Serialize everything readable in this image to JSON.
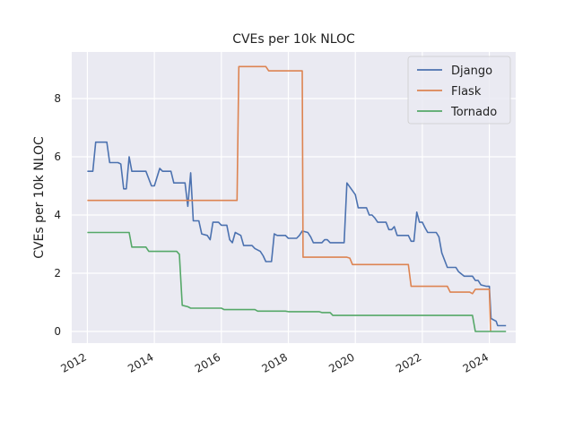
{
  "chart_data": {
    "type": "line",
    "title": "CVEs per 10k NLOC",
    "xlabel": "",
    "ylabel": "CVEs per 10k NLOC",
    "xlim": [
      "2011-07-15",
      "2024-10-15"
    ],
    "ylim": [
      -0.4,
      9.6
    ],
    "xticks": [
      "2012",
      "2014",
      "2016",
      "2018",
      "2020",
      "2022",
      "2024"
    ],
    "yticks": [
      0,
      2,
      4,
      6,
      8
    ],
    "grid": true,
    "legend_position": "top-right",
    "background": "#eaeaf2",
    "series": [
      {
        "name": "Django",
        "color": "#4c72b0",
        "points": [
          [
            "2012-01-01",
            5.5
          ],
          [
            "2012-03-01",
            5.5
          ],
          [
            "2012-04-01",
            6.5
          ],
          [
            "2012-08-01",
            6.5
          ],
          [
            "2012-09-01",
            5.8
          ],
          [
            "2012-12-01",
            5.8
          ],
          [
            "2013-01-01",
            5.75
          ],
          [
            "2013-02-01",
            4.9
          ],
          [
            "2013-03-01",
            4.9
          ],
          [
            "2013-04-01",
            6.0
          ],
          [
            "2013-05-01",
            5.5
          ],
          [
            "2013-10-01",
            5.5
          ],
          [
            "2013-12-01",
            5.0
          ],
          [
            "2014-01-01",
            5.0
          ],
          [
            "2014-03-01",
            5.6
          ],
          [
            "2014-04-01",
            5.5
          ],
          [
            "2014-07-01",
            5.5
          ],
          [
            "2014-08-01",
            5.1
          ],
          [
            "2014-12-01",
            5.1
          ],
          [
            "2015-01-01",
            4.3
          ],
          [
            "2015-02-01",
            5.45
          ],
          [
            "2015-03-01",
            3.8
          ],
          [
            "2015-05-01",
            3.8
          ],
          [
            "2015-06-01",
            3.35
          ],
          [
            "2015-08-01",
            3.3
          ],
          [
            "2015-09-01",
            3.15
          ],
          [
            "2015-10-01",
            3.75
          ],
          [
            "2015-12-01",
            3.75
          ],
          [
            "2016-01-01",
            3.65
          ],
          [
            "2016-03-01",
            3.65
          ],
          [
            "2016-04-01",
            3.15
          ],
          [
            "2016-05-01",
            3.05
          ],
          [
            "2016-06-01",
            3.4
          ],
          [
            "2016-08-01",
            3.3
          ],
          [
            "2016-09-01",
            2.95
          ],
          [
            "2016-12-01",
            2.95
          ],
          [
            "2017-01-01",
            2.85
          ],
          [
            "2017-03-01",
            2.75
          ],
          [
            "2017-04-01",
            2.6
          ],
          [
            "2017-05-01",
            2.4
          ],
          [
            "2017-07-01",
            2.4
          ],
          [
            "2017-08-01",
            3.35
          ],
          [
            "2017-09-01",
            3.3
          ],
          [
            "2017-12-01",
            3.3
          ],
          [
            "2018-01-01",
            3.2
          ],
          [
            "2018-04-01",
            3.2
          ],
          [
            "2018-05-01",
            3.3
          ],
          [
            "2018-06-01",
            3.45
          ],
          [
            "2018-08-01",
            3.4
          ],
          [
            "2018-09-01",
            3.25
          ],
          [
            "2018-10-01",
            3.05
          ],
          [
            "2019-01-01",
            3.05
          ],
          [
            "2019-02-01",
            3.15
          ],
          [
            "2019-03-01",
            3.15
          ],
          [
            "2019-04-01",
            3.05
          ],
          [
            "2019-09-01",
            3.05
          ],
          [
            "2019-10-01",
            5.1
          ],
          [
            "2020-01-01",
            4.7
          ],
          [
            "2020-02-01",
            4.25
          ],
          [
            "2020-05-01",
            4.25
          ],
          [
            "2020-06-01",
            4.0
          ],
          [
            "2020-07-01",
            4.0
          ],
          [
            "2020-08-01",
            3.9
          ],
          [
            "2020-09-01",
            3.75
          ],
          [
            "2020-12-01",
            3.75
          ],
          [
            "2021-01-01",
            3.5
          ],
          [
            "2021-02-01",
            3.5
          ],
          [
            "2021-03-01",
            3.6
          ],
          [
            "2021-04-01",
            3.3
          ],
          [
            "2021-08-01",
            3.3
          ],
          [
            "2021-09-01",
            3.1
          ],
          [
            "2021-10-01",
            3.1
          ],
          [
            "2021-11-01",
            4.1
          ],
          [
            "2021-12-01",
            3.75
          ],
          [
            "2022-01-01",
            3.75
          ],
          [
            "2022-02-01",
            3.55
          ],
          [
            "2022-03-01",
            3.4
          ],
          [
            "2022-06-01",
            3.4
          ],
          [
            "2022-07-01",
            3.25
          ],
          [
            "2022-08-01",
            2.7
          ],
          [
            "2022-10-01",
            2.2
          ],
          [
            "2023-01-01",
            2.2
          ],
          [
            "2023-02-01",
            2.05
          ],
          [
            "2023-04-01",
            1.9
          ],
          [
            "2023-07-01",
            1.9
          ],
          [
            "2023-08-01",
            1.75
          ],
          [
            "2023-09-01",
            1.75
          ],
          [
            "2023-10-01",
            1.6
          ],
          [
            "2023-12-01",
            1.55
          ],
          [
            "2024-01-01",
            1.55
          ],
          [
            "2024-01-20",
            0.45
          ],
          [
            "2024-02-15",
            0.4
          ],
          [
            "2024-03-15",
            0.35
          ],
          [
            "2024-04-01",
            0.2
          ],
          [
            "2024-07-01",
            0.2
          ]
        ]
      },
      {
        "name": "Flask",
        "color": "#dd8452",
        "points": [
          [
            "2012-01-01",
            4.5
          ],
          [
            "2016-06-20",
            4.5
          ],
          [
            "2016-07-10",
            9.1
          ],
          [
            "2017-05-01",
            9.1
          ],
          [
            "2017-06-01",
            8.95
          ],
          [
            "2018-06-01",
            8.95
          ],
          [
            "2018-06-10",
            2.55
          ],
          [
            "2019-10-01",
            2.55
          ],
          [
            "2019-11-01",
            2.52
          ],
          [
            "2019-12-01",
            2.3
          ],
          [
            "2021-08-01",
            2.3
          ],
          [
            "2021-09-01",
            1.55
          ],
          [
            "2022-06-01",
            1.55
          ],
          [
            "2022-10-01",
            1.55
          ],
          [
            "2022-11-01",
            1.35
          ],
          [
            "2023-06-01",
            1.35
          ],
          [
            "2023-07-01",
            1.3
          ],
          [
            "2023-08-01",
            1.45
          ],
          [
            "2023-12-01",
            1.45
          ],
          [
            "2024-01-01",
            1.45
          ],
          [
            "2024-01-15",
            0.02
          ]
        ]
      },
      {
        "name": "Tornado",
        "color": "#55a868",
        "points": [
          [
            "2012-01-01",
            3.4
          ],
          [
            "2013-04-01",
            3.4
          ],
          [
            "2013-05-01",
            2.9
          ],
          [
            "2013-10-01",
            2.9
          ],
          [
            "2013-11-01",
            2.75
          ],
          [
            "2014-09-01",
            2.75
          ],
          [
            "2014-10-01",
            2.65
          ],
          [
            "2014-11-01",
            0.9
          ],
          [
            "2015-01-01",
            0.85
          ],
          [
            "2015-02-01",
            0.8
          ],
          [
            "2016-01-01",
            0.8
          ],
          [
            "2016-02-01",
            0.75
          ],
          [
            "2017-01-01",
            0.75
          ],
          [
            "2017-02-01",
            0.7
          ],
          [
            "2017-12-01",
            0.7
          ],
          [
            "2018-01-01",
            0.68
          ],
          [
            "2018-12-01",
            0.68
          ],
          [
            "2019-01-01",
            0.65
          ],
          [
            "2019-04-01",
            0.65
          ],
          [
            "2019-05-01",
            0.55
          ],
          [
            "2023-07-01",
            0.55
          ],
          [
            "2023-08-01",
            0.0
          ],
          [
            "2024-04-01",
            0.0
          ],
          [
            "2024-07-01",
            0.0
          ]
        ]
      }
    ]
  }
}
